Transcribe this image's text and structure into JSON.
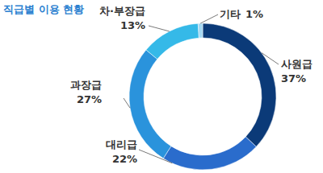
{
  "chart_data": {
    "type": "pie",
    "title": "직급별 이용 현황",
    "categories": [
      "사원급",
      "대리급",
      "과장급",
      "차·부장급",
      "기타"
    ],
    "values": [
      37,
      22,
      27,
      13,
      1
    ],
    "value_labels": [
      "37%",
      "22%",
      "27%",
      "13%",
      "1%"
    ],
    "colors": [
      "#0b3a78",
      "#2a6ccc",
      "#2a93dc",
      "#35b9e8",
      "#a5d8f2"
    ],
    "data_labels": true
  }
}
